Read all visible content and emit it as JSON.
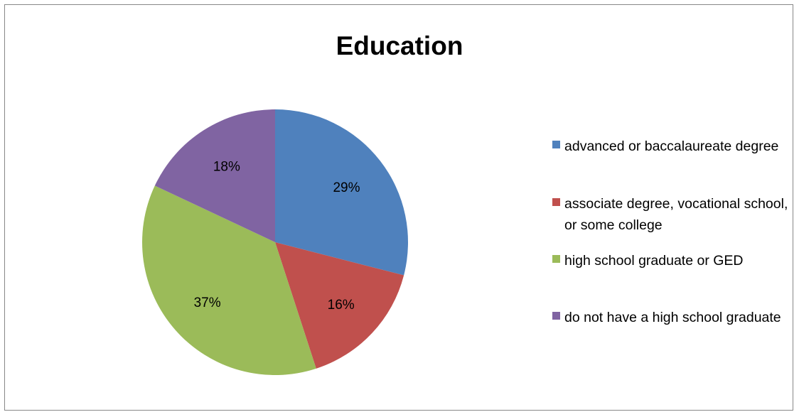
{
  "chart_data": {
    "type": "pie",
    "title": "Education",
    "categories": [
      "advanced or baccalaureate degree",
      "associate degree, vocational school, or some college",
      "high school graduate or GED",
      "do not have a high school graduate"
    ],
    "values": [
      29,
      16,
      37,
      18
    ],
    "data_labels": [
      "29%",
      "16%",
      "37%",
      "18%"
    ],
    "colors": [
      "#4f81bd",
      "#c0504d",
      "#9bbb59",
      "#8064a2"
    ],
    "legend_position": "right",
    "start_angle": "12 o'clock",
    "direction": "clockwise"
  },
  "legend": {
    "items": [
      {
        "label": "advanced or baccalaureate degree",
        "color": "#4f81bd"
      },
      {
        "label": "associate degree, vocational school, or some college",
        "color": "#c0504d"
      },
      {
        "label": "high school graduate or GED",
        "color": "#9bbb59"
      },
      {
        "label": "do not have a high school graduate",
        "color": "#8064a2"
      }
    ]
  }
}
